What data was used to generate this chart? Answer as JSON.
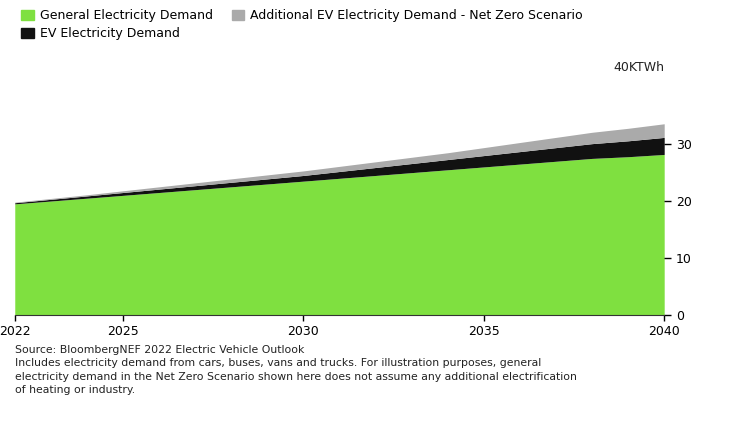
{
  "years": [
    2022,
    2023,
    2024,
    2025,
    2026,
    2027,
    2028,
    2029,
    2030,
    2031,
    2032,
    2033,
    2034,
    2035,
    2036,
    2037,
    2038,
    2039,
    2040
  ],
  "general_electricity": [
    19.5,
    20.0,
    20.5,
    21.0,
    21.5,
    22.0,
    22.5,
    23.0,
    23.5,
    24.0,
    24.5,
    25.0,
    25.5,
    26.0,
    26.5,
    27.0,
    27.5,
    27.8,
    28.2
  ],
  "ev_electricity": [
    0.2,
    0.3,
    0.4,
    0.5,
    0.6,
    0.7,
    0.8,
    0.9,
    1.0,
    1.2,
    1.4,
    1.6,
    1.8,
    2.0,
    2.2,
    2.4,
    2.6,
    2.8,
    3.0
  ],
  "net_zero_extra": [
    0.1,
    0.15,
    0.2,
    0.3,
    0.4,
    0.5,
    0.6,
    0.7,
    0.8,
    0.9,
    1.0,
    1.1,
    1.2,
    1.4,
    1.6,
    1.8,
    2.0,
    2.2,
    2.4
  ],
  "color_general": "#7FE040",
  "color_ev": "#111111",
  "color_net_zero": "#aaaaaa",
  "legend_labels": [
    "General Electricity Demand",
    "EV Electricity Demand",
    "Additional EV Electricity Demand - Net Zero Scenario"
  ],
  "yticks": [
    0,
    10,
    20,
    30
  ],
  "xticks": [
    2022,
    2025,
    2030,
    2035,
    2040
  ],
  "ylabel_top": "40KTWh",
  "ylim": [
    0,
    40
  ],
  "xlim": [
    2022,
    2040
  ],
  "source_line1": "Source: BloombergNEF 2022 Electric Vehicle Outlook",
  "source_line2": "Includes electricity demand from cars, buses, vans and trucks. For illustration purposes, general",
  "source_line3": "electricity demand in the Net Zero Scenario shown here does not assume any additional electrification",
  "source_line4": "of heating or industry.",
  "bg_color": "#ffffff"
}
